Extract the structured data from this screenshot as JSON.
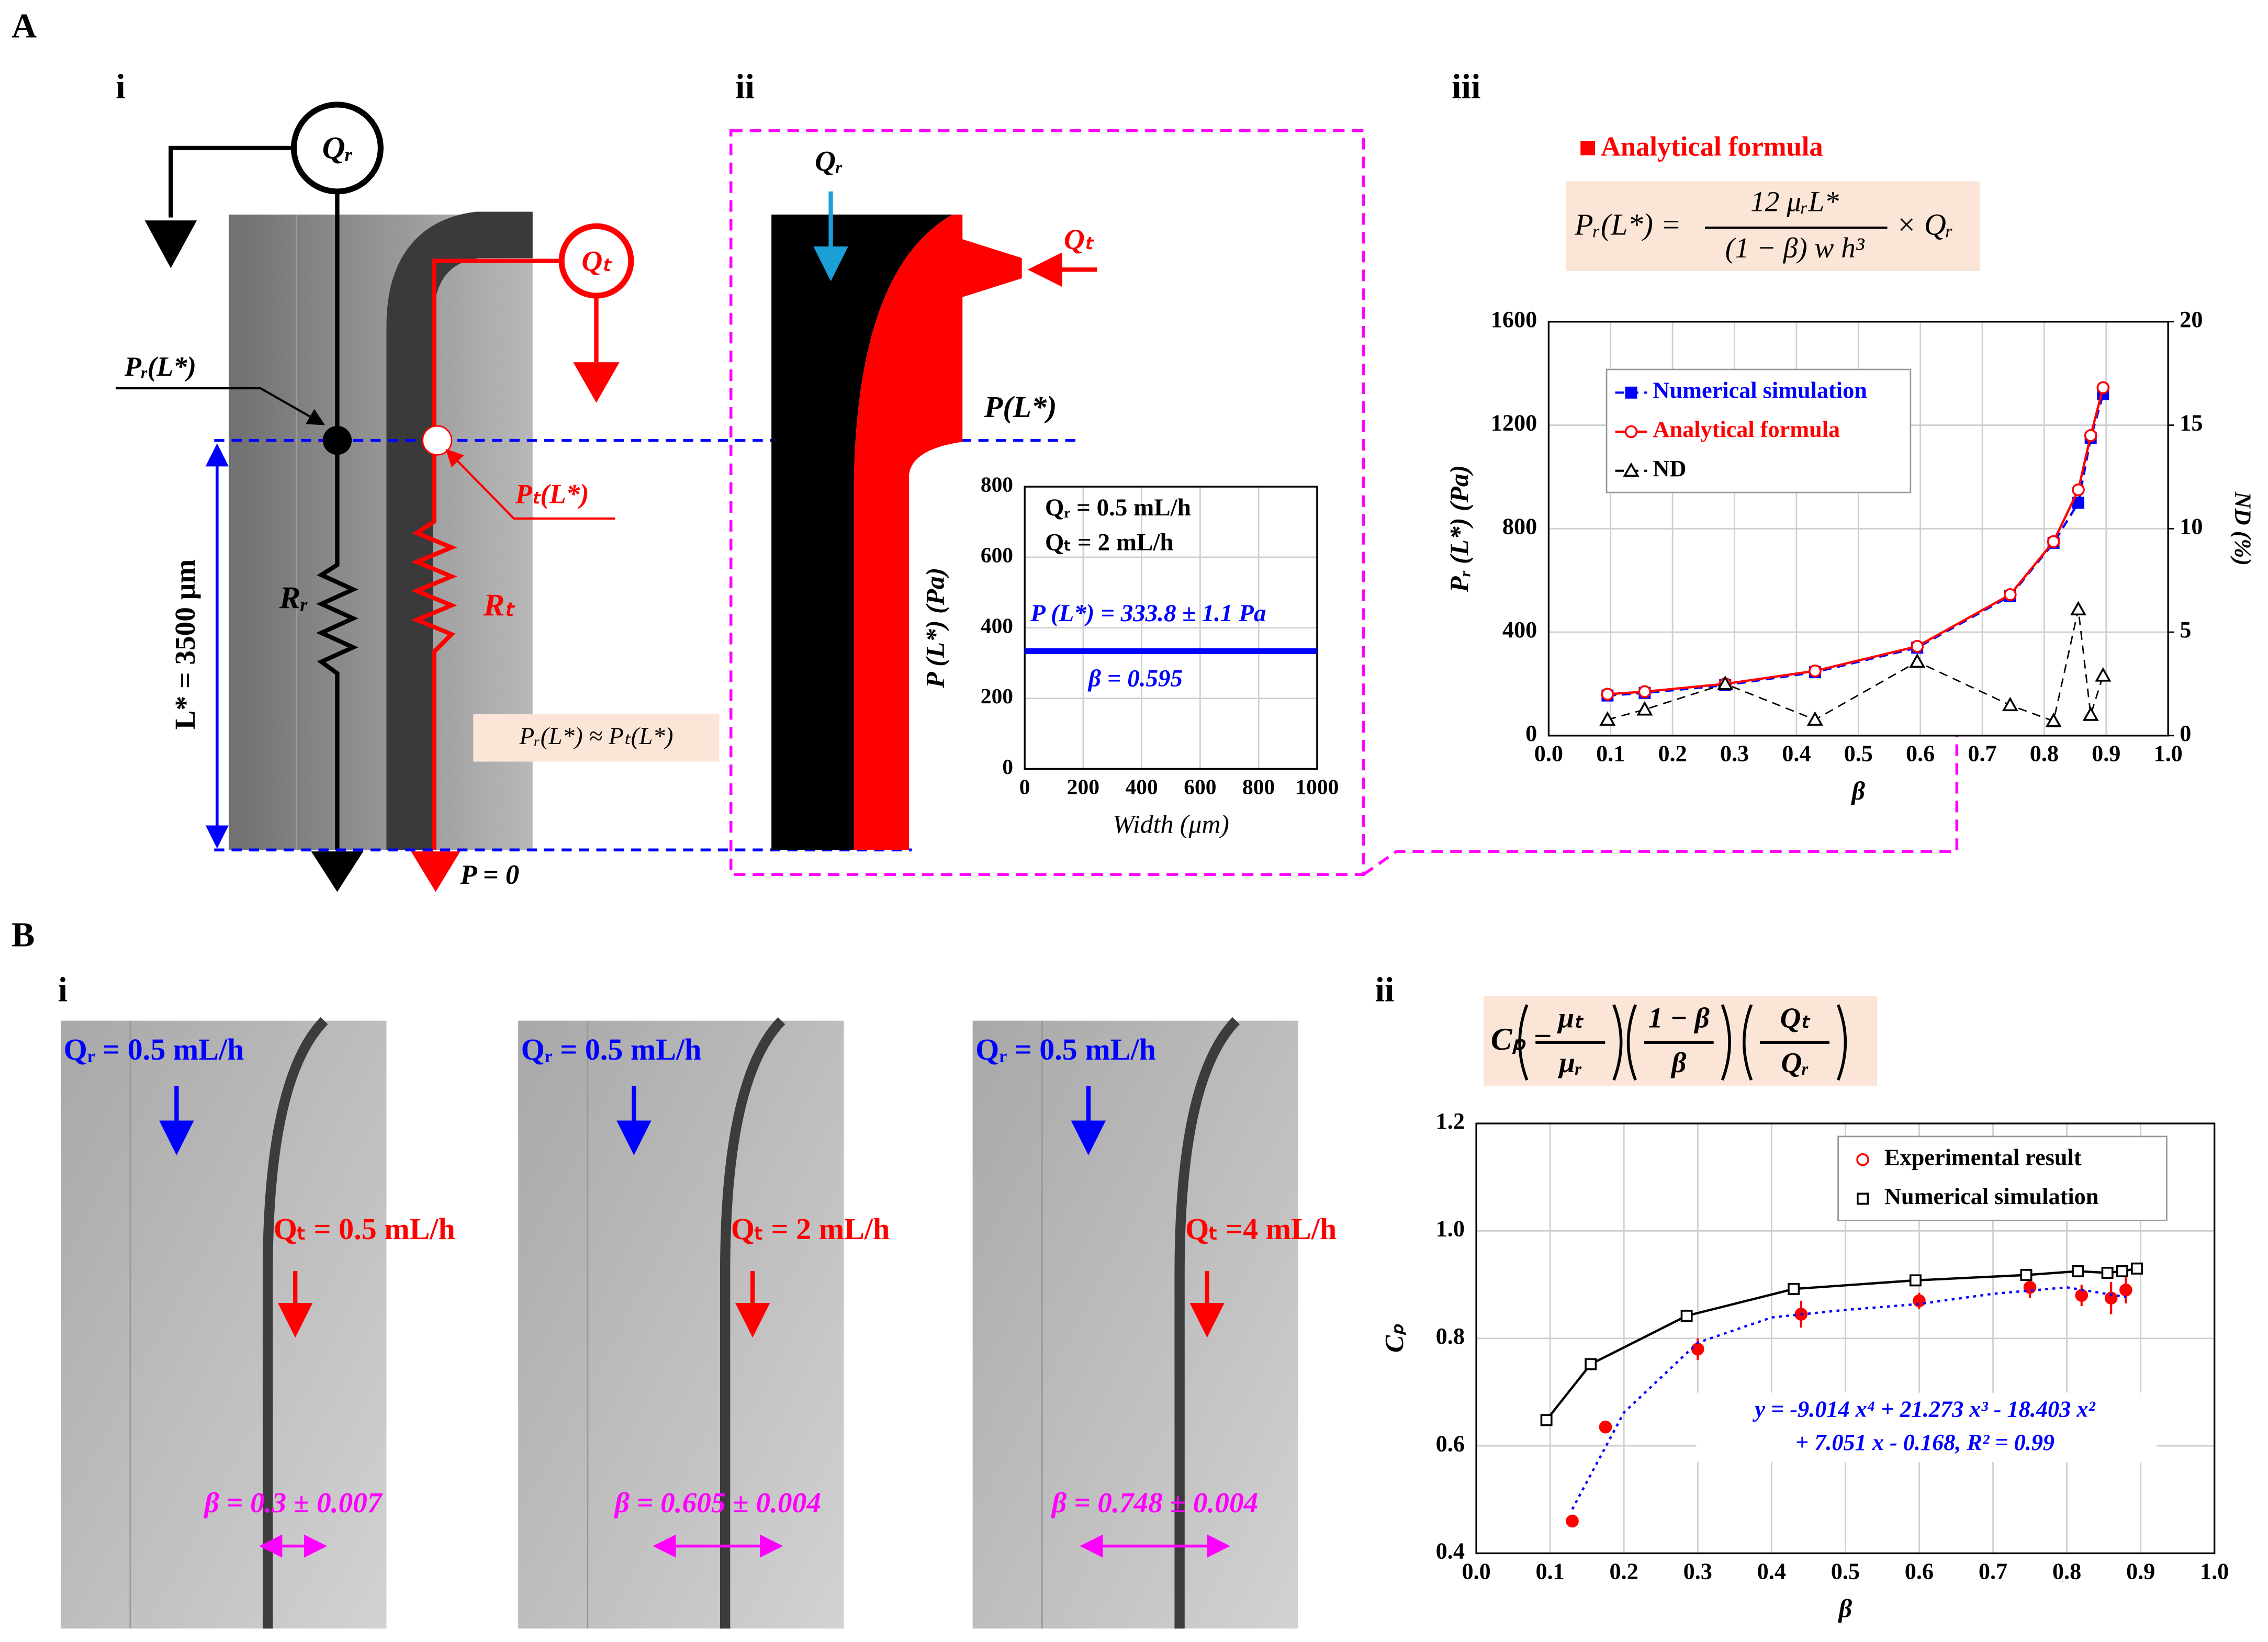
{
  "panel_labels": [
    "A",
    "i",
    "ii",
    "iii",
    "B",
    "i",
    "ii"
  ],
  "diagram": {
    "qr": "Qᵣ",
    "qt": "Qₜ",
    "pr": "Pᵣ(L*)",
    "pt": "Pₜ(L*)",
    "rr": "Rᵣ",
    "rt": "Rₜ",
    "length": "L* = 3500 μm",
    "approx": "Pᵣ(L*) ≈ Pₜ(L*)",
    "outlet": "P = 0",
    "pl": "P(L*)",
    "qr2": "Qᵣ",
    "qt2": "Qₜ"
  },
  "formula_a": {
    "legend": "Analytical formula",
    "lhs": "Pᵣ(L*) =",
    "numerator": "12 μᵣL*",
    "denominator": "(1 − β) w h³",
    "rhs": "× Qᵣ"
  },
  "formula_b": {
    "lhs": "Cₚ =",
    "parts": [
      "μₜ",
      "μᵣ",
      "1 − β",
      "β",
      "Qₜ",
      "Qᵣ"
    ]
  },
  "micrographs": [
    {
      "qr": "Qᵣ = 0.5 mL/h",
      "qt": "Qₜ = 0.5 mL/h",
      "beta": "β = 0.3 ± 0.007"
    },
    {
      "qr": "Qᵣ = 0.5 mL/h",
      "qt": "Qₜ = 2 mL/h",
      "beta": "β = 0.605 ± 0.004"
    },
    {
      "qr": "Qᵣ = 0.5 mL/h",
      "qt": "Qₜ =4 mL/h",
      "beta": "β = 0.748 ± 0.004"
    }
  ],
  "chart_data": [
    {
      "type": "line",
      "x_label": "Width (μm)",
      "y_label": "P (L*) (Pa)",
      "annotations": [
        "Qᵣ = 0.5 mL/h",
        "Qₜ = 2 mL/h",
        "P (L*) = 333.8 ± 1.1 Pa",
        "β = 0.595"
      ],
      "x": [
        0,
        1000
      ],
      "series": [
        {
          "color": "#0000ff",
          "line": "solid",
          "values": [
            333.8,
            333.8
          ]
        }
      ],
      "xlim": [
        0,
        1000
      ],
      "xticks": [
        0,
        200,
        400,
        600,
        800,
        1000
      ],
      "ylim": [
        0,
        800
      ],
      "yticks": [
        0,
        200,
        400,
        600,
        800
      ],
      "grid": true
    },
    {
      "type": "line",
      "x_label": "β",
      "y_label": "Pᵣ (L*) (Pa)",
      "y2_label": "ND (%)",
      "legend": "upper left",
      "x": [
        0.095,
        0.155,
        0.285,
        0.43,
        0.595,
        0.745,
        0.815,
        0.855,
        0.875,
        0.895
      ],
      "series": [
        {
          "name": "Numerical simulation",
          "color": "#0000ff",
          "line": "dashed",
          "marker": "square",
          "marker_filled": true,
          "values": [
            155,
            165,
            195,
            245,
            340,
            540,
            745,
            900,
            1150,
            1320
          ]
        },
        {
          "name": "Analytical formula",
          "color": "#ff0000",
          "line": "solid",
          "marker": "circle",
          "marker_filled": false,
          "values": [
            160,
            170,
            200,
            250,
            345,
            545,
            750,
            950,
            1160,
            1345
          ]
        },
        {
          "name": "ND",
          "color": "#000000",
          "line": "dashed",
          "marker": "triangle",
          "marker_filled": false,
          "axis": "y2",
          "values": [
            0.77,
            1.26,
            2.5,
            0.77,
            3.57,
            1.47,
            0.7,
            6.1,
            1.0,
            2.9
          ]
        }
      ],
      "xlim": [
        0,
        1
      ],
      "xticks": [
        {
          "value": 0,
          "label": "0.0"
        },
        0.1,
        0.2,
        0.3,
        0.4,
        0.5,
        0.6,
        0.7,
        0.8,
        0.9,
        {
          "value": 1,
          "label": "1.0"
        }
      ],
      "ylim": [
        0,
        1600
      ],
      "yticks": [
        0,
        400,
        800,
        1200,
        1600
      ],
      "y2lim": [
        0,
        20
      ],
      "y2ticks": [
        0,
        5,
        10,
        15,
        20
      ],
      "grid": true
    },
    {
      "type": "scatter",
      "x_label": "β",
      "y_label": "Cₚ",
      "legend": "upper right",
      "annotations": [
        "y = -9.014 x⁴ + 21.273 x³ - 18.403 x²",
        "+ 7.051 x - 0.168, R² = 0.99"
      ],
      "series": [
        {
          "name": "Experimental result",
          "color": "#ff0000",
          "line": "none",
          "marker": "circle",
          "marker_filled": true,
          "x": [
            0.13,
            0.175,
            0.3,
            0.44,
            0.6,
            0.75,
            0.82,
            0.86,
            0.88
          ],
          "values": [
            0.46,
            0.635,
            0.78,
            0.845,
            0.87,
            0.895,
            0.88,
            0.875,
            0.89
          ],
          "errors": [
            0.01,
            0.01,
            0.02,
            0.025,
            0.015,
            0.02,
            0.02,
            0.03,
            0.025
          ]
        },
        {
          "name": "Numerical simulation",
          "color": "#000000",
          "line": "solid",
          "marker": "square",
          "marker_filled": false,
          "x": [
            0.095,
            0.155,
            0.285,
            0.43,
            0.595,
            0.745,
            0.815,
            0.855,
            0.875,
            0.895
          ],
          "values": [
            0.648,
            0.752,
            0.842,
            0.892,
            0.908,
            0.918,
            0.925,
            0.922,
            0.925,
            0.93
          ]
        },
        {
          "color": "#0000ff",
          "line": "dotted",
          "x": [
            0.13,
            0.2,
            0.3,
            0.4,
            0.5,
            0.6,
            0.7,
            0.8,
            0.88
          ],
          "values": [
            0.482,
            0.662,
            0.792,
            0.839,
            0.853,
            0.864,
            0.883,
            0.895,
            0.877
          ]
        }
      ],
      "xlim": [
        0,
        1
      ],
      "xticks": [
        {
          "value": 0,
          "label": "0.0"
        },
        0.1,
        0.2,
        0.3,
        0.4,
        0.5,
        0.6,
        0.7,
        0.8,
        0.9,
        {
          "value": 1,
          "label": "1.0"
        }
      ],
      "ylim": [
        0.4,
        1.2
      ],
      "yticks": [
        0.4,
        0.6,
        0.8,
        {
          "value": 1,
          "label": "1.0"
        },
        1.2
      ],
      "grid": true
    }
  ]
}
